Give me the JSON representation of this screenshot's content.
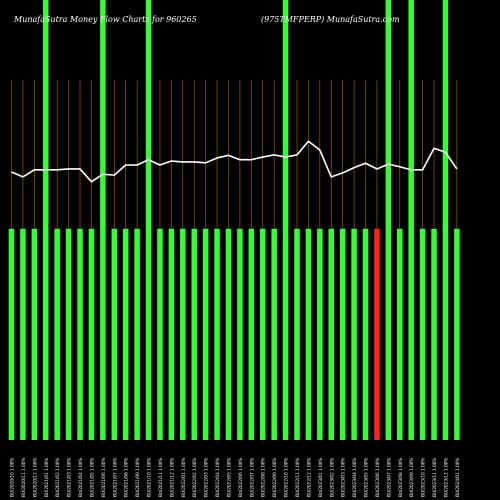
{
  "header": {
    "left": "MunafaSutra  Money Flow  Charts for 960265",
    "right": "(975TMFPERP) MunafaSutra.com"
  },
  "colors": {
    "background": "#000000",
    "bar_green": "#33ff33",
    "bar_red": "#ff2020",
    "grid": "#b36b00",
    "line": "#ffffff",
    "text": "#ffffff"
  },
  "chart_data": {
    "type": "bar",
    "grid": true,
    "ylim": [
      0,
      100
    ],
    "bar_values": [
      48,
      48,
      48,
      100,
      48,
      48,
      48,
      48,
      100,
      48,
      48,
      48,
      100,
      48,
      48,
      48,
      48,
      48,
      48,
      48,
      48,
      48,
      48,
      48,
      100,
      48,
      48,
      48,
      48,
      48,
      48,
      48,
      48,
      100,
      48,
      100,
      48,
      48,
      100,
      48
    ],
    "bar_colors": [
      "green",
      "green",
      "green",
      "green",
      "green",
      "green",
      "green",
      "green",
      "green",
      "green",
      "green",
      "green",
      "green",
      "green",
      "green",
      "green",
      "green",
      "green",
      "green",
      "green",
      "green",
      "green",
      "green",
      "green",
      "green",
      "green",
      "green",
      "green",
      "green",
      "green",
      "green",
      "green",
      "red",
      "green",
      "green",
      "green",
      "green",
      "green",
      "green",
      "green"
    ],
    "line_values": [
      60.9,
      59.8,
      61.4,
      61.4,
      61.4,
      61.6,
      61.6,
      58.7,
      60.4,
      60.2,
      62.5,
      62.5,
      63.7,
      62.5,
      63.4,
      63.2,
      63.2,
      63.0,
      64.1,
      64.7,
      63.7,
      63.7,
      64.3,
      64.8,
      64.3,
      64.8,
      67.9,
      65.9,
      59.8,
      60.7,
      61.9,
      62.9,
      61.6,
      62.7,
      62.1,
      61.4,
      61.4,
      66.3,
      65.4,
      61.6
    ],
    "x_labels": [
      "BU/2020/10 1.00%",
      "BU/2020/11 1.00%",
      "BU/2020/12 1.00%",
      "BU/2021/01 1.00%",
      "BU/2021/02 1.00%",
      "BU/2021/03 1.00%",
      "BU/2021/04 1.00%",
      "BU/2021/05 1.00%",
      "BU/2021/06 1.00%",
      "BU/2021/07 1.00%",
      "BU/2021/08 1.00%",
      "BU/2021/09 1.00%",
      "BU/2021/10 1.00%",
      "BU/2021/11 1.00%",
      "BU/2021/12 1.00%",
      "BU/2022/01 1.00%",
      "BU/2022/02 1.00%",
      "BU/2022/03 1.00%",
      "BU/2022/04 1.00%",
      "BU/2022/05 1.00%",
      "BU/2022/06 1.00%",
      "BU/2022/07 1.00%",
      "BU/2022/08 1.00%",
      "BU/2022/09 1.00%",
      "BU/2022/10 1.00%",
      "BU/2022/11 1.00%",
      "BU/2022/12 1.00%",
      "BU/2023/01 1.00%",
      "BU/2023/02 1.00%",
      "BU/2023/03 1.00%",
      "BU/2023/04 1.00%",
      "BU/2023/05 1.00%",
      "BU/2023/06 1.00%",
      "BU/2023/07 1.00%",
      "BU/2023/08 1.00%",
      "BU/2023/09 1.00%",
      "BU/2023/10 1.00%",
      "BU/2023/11 1.00%",
      "BU/2023/12 1.00%",
      "BU/2024/01 1.00%"
    ]
  }
}
